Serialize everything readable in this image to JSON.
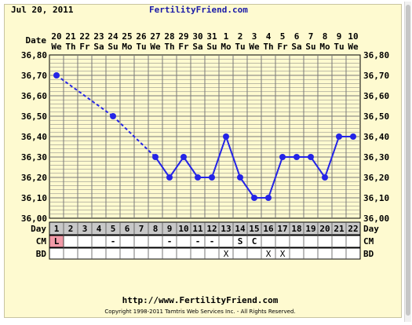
{
  "header": {
    "date": "Jul 20, 2011",
    "site": "FertilityFriend.com"
  },
  "labels": {
    "date": "Date",
    "day": "Day",
    "cm": "CM",
    "bd": "BD"
  },
  "footer": {
    "url": "http://www.FertilityFriend.com",
    "copyright": "Copyright 1998-2011 Tamtris Web Services Inc. - All Rights Reserved."
  },
  "chart_data": {
    "type": "line",
    "ylim": [
      36.0,
      36.8
    ],
    "y_ticks": [
      "36,00",
      "36,10",
      "36,20",
      "36,30",
      "36,40",
      "36,50",
      "36,60",
      "36,70",
      "36,80"
    ],
    "dates": [
      "20",
      "21",
      "22",
      "23",
      "24",
      "25",
      "26",
      "27",
      "28",
      "29",
      "30",
      "31",
      "1",
      "2",
      "3",
      "4",
      "5",
      "6",
      "7",
      "8",
      "9",
      "10"
    ],
    "weekdays": [
      "We",
      "Th",
      "Fr",
      "Sa",
      "Su",
      "Mo",
      "Tu",
      "We",
      "Th",
      "Fr",
      "Sa",
      "Su",
      "Mo",
      "Tu",
      "We",
      "Th",
      "Fr",
      "Sa",
      "Su",
      "Mo",
      "Tu",
      "We"
    ],
    "days": [
      "1",
      "2",
      "3",
      "4",
      "5",
      "6",
      "7",
      "8",
      "9",
      "10",
      "11",
      "12",
      "13",
      "14",
      "15",
      "16",
      "17",
      "18",
      "19",
      "20",
      "21",
      "22"
    ],
    "temperatures": [
      36.7,
      null,
      null,
      null,
      36.5,
      null,
      null,
      36.3,
      36.2,
      36.3,
      36.2,
      36.2,
      36.4,
      36.2,
      36.1,
      36.1,
      36.3,
      36.3,
      36.3,
      36.2,
      36.4,
      36.4
    ],
    "dashed_until_day": 8,
    "cm": [
      "L",
      "",
      "",
      "",
      "-",
      "",
      "",
      "",
      "-",
      "",
      "-",
      "-",
      "",
      "S",
      "C",
      "",
      "",
      "",
      "",
      "",
      "",
      ""
    ],
    "bd": [
      "",
      "",
      "",
      "",
      "",
      "",
      "",
      "",
      "",
      "",
      "",
      "",
      "X",
      "",
      "",
      "X",
      "X",
      "",
      "",
      "",
      "",
      ""
    ],
    "colors": {
      "background": "#fefad0",
      "grid": "#7a7a7a",
      "line": "#2525e6",
      "day_row": "#c8c8c8",
      "menstruation": "#f29aa8"
    }
  }
}
